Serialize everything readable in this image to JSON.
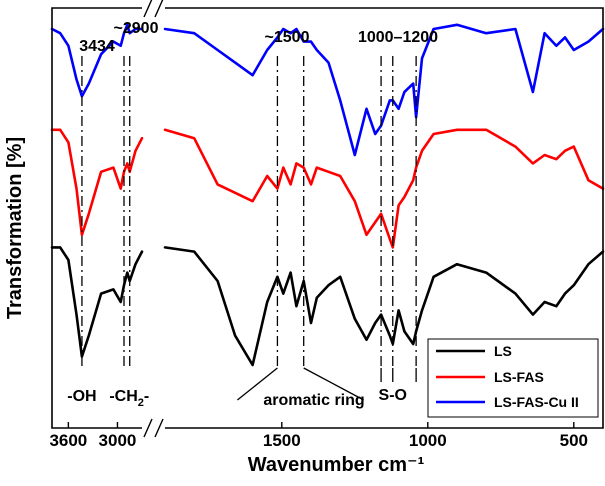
{
  "chart_data": {
    "type": "line",
    "title": "",
    "xlabel": "Wavenumber cm⁻¹",
    "ylabel": "Transformation [%]",
    "x_axis": {
      "direction": "descending",
      "broken": true,
      "segment_left": {
        "range": [
          3800,
          2700
        ],
        "ticks": [
          {
            "value": 3600,
            "label": "3600"
          },
          {
            "value": 3000,
            "label": "3000"
          }
        ]
      },
      "segment_right": {
        "range": [
          1900,
          400
        ],
        "ticks": [
          {
            "value": 1500,
            "label": "1500"
          },
          {
            "value": 1000,
            "label": "1000"
          },
          {
            "value": 500,
            "label": "500"
          }
        ]
      }
    },
    "y_axis": {
      "ticks_shown": false,
      "units": "arbitrary offset transmittance"
    },
    "legend": {
      "position": "bottom-right",
      "entries": [
        "LS",
        "LS-FAS",
        "LS-FAS-Cu II"
      ]
    },
    "series": [
      {
        "name": "LS",
        "color": "#000000",
        "x": [
          3800,
          3700,
          3600,
          3500,
          3434,
          3350,
          3200,
          3050,
          2960,
          2920,
          2880,
          2850,
          2780,
          2700,
          1900,
          1800,
          1720,
          1660,
          1600,
          1550,
          1515,
          1495,
          1470,
          1450,
          1425,
          1400,
          1380,
          1340,
          1300,
          1250,
          1210,
          1180,
          1160,
          1130,
          1120,
          1100,
          1080,
          1050,
          1040,
          1020,
          980,
          900,
          800,
          700,
          640,
          600,
          560,
          530,
          500,
          450,
          400
        ],
        "y": [
          93,
          93,
          90,
          77,
          67,
          72,
          82,
          83,
          80,
          84,
          87,
          85,
          89,
          92,
          93,
          92,
          85,
          72,
          65,
          80,
          86,
          82,
          87,
          79,
          85,
          75,
          81,
          84,
          86,
          76,
          71,
          75,
          77,
          72,
          70,
          78,
          73,
          70,
          73,
          78,
          86,
          89,
          87,
          82,
          77,
          80,
          79,
          82,
          84,
          89,
          92
        ]
      },
      {
        "name": "LS-FAS",
        "color": "#ff0000",
        "x": [
          3800,
          3700,
          3600,
          3500,
          3434,
          3350,
          3200,
          3050,
          2960,
          2920,
          2880,
          2850,
          2780,
          2700,
          1900,
          1800,
          1720,
          1660,
          1600,
          1550,
          1515,
          1495,
          1470,
          1450,
          1425,
          1400,
          1380,
          1340,
          1300,
          1250,
          1210,
          1180,
          1160,
          1130,
          1120,
          1100,
          1080,
          1050,
          1040,
          1020,
          980,
          900,
          800,
          700,
          640,
          600,
          560,
          530,
          500,
          450,
          400
        ],
        "y": [
          121,
          121,
          118,
          107,
          96,
          101,
          111,
          112,
          107,
          111,
          113,
          111,
          116,
          119,
          121,
          119,
          108,
          106,
          104,
          110,
          107,
          112,
          108,
          113,
          112,
          108,
          112,
          111,
          110,
          104,
          96,
          99,
          101,
          95,
          93,
          103,
          105,
          109,
          112,
          116,
          120,
          121,
          121,
          117,
          113,
          115,
          114,
          116,
          117,
          109,
          107
        ]
      },
      {
        "name": "LS-FAS-Cu II",
        "color": "#0000ff",
        "x": [
          3800,
          3700,
          3600,
          3500,
          3434,
          3350,
          3200,
          3050,
          2960,
          2920,
          2880,
          2850,
          2780,
          2700,
          1900,
          1800,
          1720,
          1660,
          1600,
          1550,
          1515,
          1495,
          1470,
          1450,
          1425,
          1400,
          1380,
          1340,
          1300,
          1250,
          1210,
          1180,
          1160,
          1130,
          1120,
          1100,
          1080,
          1050,
          1040,
          1020,
          980,
          900,
          800,
          700,
          640,
          600,
          560,
          530,
          500,
          450,
          400
        ],
        "y": [
          145,
          144,
          141,
          133,
          129,
          132,
          139,
          142,
          141,
          144,
          146,
          144,
          145,
          145,
          145,
          144,
          140,
          137,
          134,
          140,
          143,
          145,
          144,
          145,
          142,
          142,
          140,
          137,
          128,
          115,
          126,
          120,
          122,
          128,
          128,
          126,
          130,
          132,
          124,
          138,
          145,
          146,
          144,
          145,
          130,
          144,
          141,
          143,
          140,
          142,
          145
        ]
      }
    ],
    "annotations": [
      {
        "type": "peak_line",
        "x": 3434,
        "label": "3434"
      },
      {
        "type": "peak_line",
        "x": 2920,
        "label": "~2900"
      },
      {
        "type": "peak_line",
        "x": 2850,
        "label": ""
      },
      {
        "type": "peak_line",
        "x": 1515,
        "label": "~1500"
      },
      {
        "type": "peak_line",
        "x": 1425,
        "label": ""
      },
      {
        "type": "peak_line",
        "x": 1160,
        "label": "1000–1200"
      },
      {
        "type": "peak_line",
        "x": 1120,
        "label": ""
      },
      {
        "type": "peak_line",
        "x": 1040,
        "label": ""
      }
    ],
    "group_labels": {
      "oh": "-OH",
      "ch2": "-CH",
      "ch2_sub": "2",
      "ch2_tail": "-",
      "aromatic": "aromatic ring",
      "so": "S-O"
    }
  }
}
